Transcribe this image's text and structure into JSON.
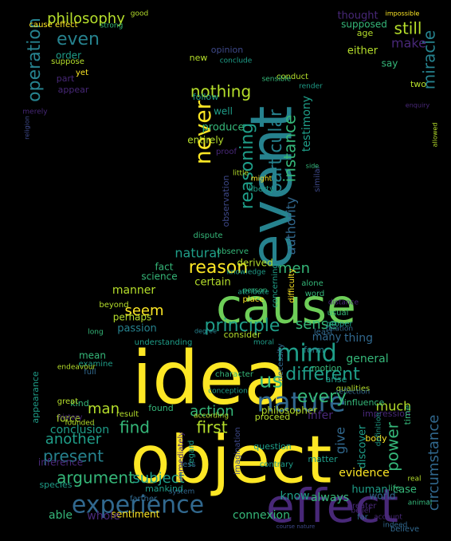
{
  "palette": {
    "background": "#000000",
    "yellow": "#fde725",
    "lime": "#b5de2b",
    "green": "#6ece58",
    "teal": "#35b779",
    "cyan": "#1f9e89",
    "blue": "#26828e",
    "navy": "#31688e",
    "indigo": "#3e4989",
    "purple": "#482878",
    "violet": "#440154"
  },
  "words": [
    {
      "text": "object"
    },
    {
      "text": "idea"
    },
    {
      "text": "cause"
    },
    {
      "text": "event"
    },
    {
      "text": "effect"
    },
    {
      "text": "experience"
    },
    {
      "text": "nature"
    },
    {
      "text": "mind"
    },
    {
      "text": "us"
    },
    {
      "text": "principle"
    },
    {
      "text": "never"
    },
    {
      "text": "reason"
    },
    {
      "text": "reasoning"
    },
    {
      "text": "particular"
    },
    {
      "text": "instance"
    },
    {
      "text": "sense"
    },
    {
      "text": "different"
    },
    {
      "text": "every"
    },
    {
      "text": "argument"
    },
    {
      "text": "subject"
    },
    {
      "text": "operation"
    },
    {
      "text": "miracle"
    },
    {
      "text": "philosophy"
    },
    {
      "text": "even"
    },
    {
      "text": "still"
    },
    {
      "text": "make"
    },
    {
      "text": "nothing"
    },
    {
      "text": "seem"
    },
    {
      "text": "man"
    },
    {
      "text": "find"
    },
    {
      "text": "first"
    },
    {
      "text": "action"
    },
    {
      "text": "present"
    },
    {
      "text": "another"
    },
    {
      "text": "conclusion"
    },
    {
      "text": "power"
    },
    {
      "text": "circumstance"
    },
    {
      "text": "much"
    },
    {
      "text": "natural"
    },
    {
      "text": "men"
    },
    {
      "text": "authority"
    },
    {
      "text": "testimony"
    },
    {
      "text": "philosopher"
    },
    {
      "text": "evidence"
    },
    {
      "text": "connexion"
    },
    {
      "text": "sentiment"
    },
    {
      "text": "know"
    },
    {
      "text": "always"
    },
    {
      "text": "human"
    },
    {
      "text": "case"
    },
    {
      "text": "whole"
    },
    {
      "text": "able"
    },
    {
      "text": "species"
    },
    {
      "text": "mankind"
    },
    {
      "text": "farther"
    },
    {
      "text": "inference"
    },
    {
      "text": "force"
    },
    {
      "text": "kind"
    },
    {
      "text": "result"
    },
    {
      "text": "found"
    },
    {
      "text": "regard"
    },
    {
      "text": "infer"
    },
    {
      "text": "give"
    },
    {
      "text": "discover"
    },
    {
      "text": "general"
    },
    {
      "text": "thing"
    },
    {
      "text": "many"
    },
    {
      "text": "form"
    },
    {
      "text": "consider"
    },
    {
      "text": "passion"
    },
    {
      "text": "perhaps"
    },
    {
      "text": "manner"
    },
    {
      "text": "certain"
    },
    {
      "text": "science"
    },
    {
      "text": "fact"
    },
    {
      "text": "derived"
    },
    {
      "text": "produce"
    },
    {
      "text": "entirely"
    },
    {
      "text": "follow"
    },
    {
      "text": "well"
    },
    {
      "text": "new"
    },
    {
      "text": "thought"
    },
    {
      "text": "supposed"
    },
    {
      "text": "age"
    },
    {
      "text": "either"
    },
    {
      "text": "say"
    },
    {
      "text": "two"
    },
    {
      "text": "order"
    },
    {
      "text": "suppose"
    },
    {
      "text": "yet"
    },
    {
      "text": "appear"
    },
    {
      "text": "part"
    },
    {
      "text": "opinion"
    },
    {
      "text": "conclude"
    },
    {
      "text": "conduct"
    },
    {
      "text": "similar"
    },
    {
      "text": "liberty"
    },
    {
      "text": "proof"
    },
    {
      "text": "little"
    },
    {
      "text": "might"
    },
    {
      "text": "observation"
    },
    {
      "text": "dispute"
    },
    {
      "text": "observe"
    },
    {
      "text": "knowledge"
    },
    {
      "text": "alone"
    },
    {
      "text": "word"
    },
    {
      "text": "person"
    },
    {
      "text": "place"
    },
    {
      "text": "concerning"
    },
    {
      "text": "difficulty"
    },
    {
      "text": "attribute"
    },
    {
      "text": "usual"
    },
    {
      "text": "proper"
    },
    {
      "text": "relation"
    },
    {
      "text": "least"
    },
    {
      "text": "moral"
    },
    {
      "text": "beyond"
    },
    {
      "text": "understanding"
    },
    {
      "text": "long"
    },
    {
      "text": "mean"
    },
    {
      "text": "examine"
    },
    {
      "text": "full"
    },
    {
      "text": "appearance"
    },
    {
      "text": "great"
    },
    {
      "text": "history"
    },
    {
      "text": "founded"
    },
    {
      "text": "according"
    },
    {
      "text": "proceed"
    },
    {
      "text": "conception"
    },
    {
      "text": "character"
    },
    {
      "text": "necessity"
    },
    {
      "text": "motion"
    },
    {
      "text": "arise"
    },
    {
      "text": "qualities"
    },
    {
      "text": "reflection"
    },
    {
      "text": "influence"
    },
    {
      "text": "impression"
    },
    {
      "text": "time"
    },
    {
      "text": "body"
    },
    {
      "text": "matter"
    },
    {
      "text": "question"
    },
    {
      "text": "contrary"
    },
    {
      "text": "less"
    },
    {
      "text": "immediately"
    },
    {
      "text": "imagination"
    },
    {
      "text": "world"
    },
    {
      "text": "life"
    },
    {
      "text": "greater"
    },
    {
      "text": "belief"
    },
    {
      "text": "far"
    },
    {
      "text": "account"
    },
    {
      "text": "indeed"
    },
    {
      "text": "animal"
    },
    {
      "text": "believe"
    },
    {
      "text": "cause effect"
    },
    {
      "text": "strong"
    },
    {
      "text": "good"
    },
    {
      "text": "impossible"
    },
    {
      "text": "enquiry"
    },
    {
      "text": "allowed"
    },
    {
      "text": "religion"
    },
    {
      "text": "merely"
    },
    {
      "text": "side"
    },
    {
      "text": "render"
    },
    {
      "text": "sensible"
    },
    {
      "text": "endeavour"
    },
    {
      "text": "definition"
    },
    {
      "text": "distance"
    },
    {
      "text": "system"
    },
    {
      "text": "course nature"
    },
    {
      "text": "degree"
    },
    {
      "text": "real"
    }
  ]
}
